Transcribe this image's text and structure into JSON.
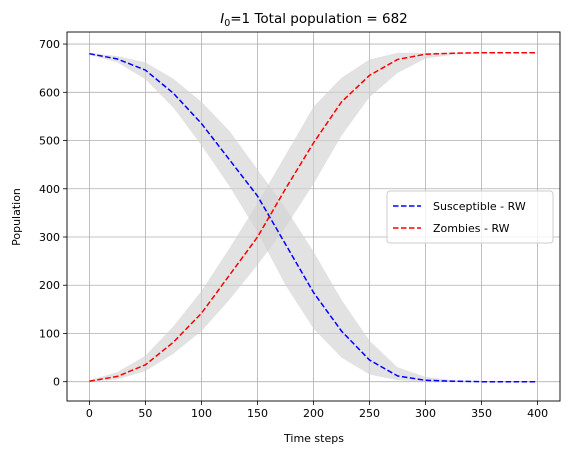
{
  "chart_data": {
    "type": "line",
    "title": {
      "italic_var": "I",
      "subscript": "0",
      "rest": "=1 Total population = 682"
    },
    "xlabel": "Time steps",
    "ylabel": "Population",
    "xlim": [
      -20,
      420
    ],
    "ylim": [
      -40,
      725
    ],
    "xticks": [
      0,
      50,
      100,
      150,
      200,
      250,
      300,
      350,
      400
    ],
    "yticks": [
      0,
      100,
      200,
      300,
      400,
      500,
      600,
      700
    ],
    "grid": true,
    "legend_position": "center-right",
    "x": [
      0,
      25,
      50,
      75,
      100,
      125,
      150,
      175,
      200,
      225,
      250,
      275,
      300,
      325,
      350,
      375,
      400
    ],
    "series": [
      {
        "name": "Susceptible - RW",
        "color": "#0000ff",
        "style": "dashed",
        "values": [
          680,
          669,
          646,
          598,
          535,
          460,
          385,
          285,
          185,
          105,
          45,
          12,
          3,
          1,
          0,
          0,
          0
        ],
        "band_lower": [
          678,
          662,
          627,
          568,
          490,
          405,
          310,
          200,
          110,
          50,
          15,
          3,
          1,
          0,
          0,
          0,
          0
        ],
        "band_upper": [
          682,
          675,
          662,
          628,
          580,
          520,
          440,
          360,
          270,
          170,
          85,
          30,
          10,
          3,
          1,
          0,
          0
        ]
      },
      {
        "name": "Zombies - RW",
        "color": "#ff0000",
        "style": "dashed",
        "values": [
          1,
          11,
          35,
          82,
          142,
          221,
          300,
          400,
          495,
          580,
          635,
          668,
          679,
          681,
          682,
          682,
          682
        ],
        "band_lower": [
          0,
          5,
          22,
          58,
          105,
          170,
          242,
          320,
          410,
          510,
          590,
          640,
          670,
          678,
          681,
          682,
          682
        ],
        "band_upper": [
          3,
          20,
          54,
          115,
          188,
          277,
          370,
          470,
          570,
          630,
          668,
          682,
          682,
          682,
          682,
          682,
          682
        ]
      }
    ],
    "band_color": "#d3d3d3"
  }
}
